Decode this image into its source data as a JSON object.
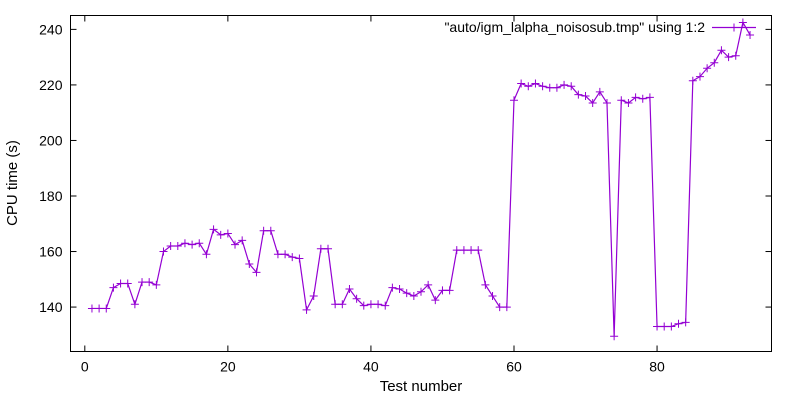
{
  "chart_data": {
    "type": "line",
    "xlabel": "Test number",
    "ylabel": "CPU time (s)",
    "xlim": [
      -2,
      96
    ],
    "ylim": [
      124,
      245
    ],
    "xticks": [
      0,
      20,
      40,
      60,
      80
    ],
    "yticks": [
      140,
      160,
      180,
      200,
      220,
      240
    ],
    "xtick_labels": [
      "0",
      "20",
      "40",
      "60",
      "80"
    ],
    "ytick_labels": [
      "140",
      "160",
      "180",
      "200",
      "220",
      "240"
    ],
    "grid": false,
    "legend_position": "top-right",
    "series": [
      {
        "name": "\"auto/igm_lalpha_noisosub.tmp\" using 1:2",
        "color": "#9400d3",
        "marker": "plus",
        "x": [
          1,
          2,
          3,
          4,
          5,
          6,
          7,
          8,
          9,
          10,
          11,
          12,
          13,
          14,
          15,
          16,
          17,
          18,
          19,
          20,
          21,
          22,
          23,
          24,
          25,
          26,
          27,
          28,
          29,
          30,
          31,
          32,
          33,
          34,
          35,
          36,
          37,
          38,
          39,
          40,
          41,
          42,
          43,
          44,
          45,
          46,
          47,
          48,
          49,
          50,
          51,
          52,
          53,
          54,
          55,
          56,
          57,
          58,
          59,
          60,
          61,
          62,
          63,
          64,
          65,
          66,
          67,
          68,
          69,
          70,
          71,
          72,
          73,
          74,
          75,
          76,
          77,
          78,
          79,
          80,
          81,
          82,
          83,
          84,
          85,
          86,
          87,
          88,
          89,
          90,
          91,
          92,
          93
        ],
        "y": [
          139.5,
          139.5,
          139.5,
          147,
          148.5,
          148.5,
          141,
          149,
          149,
          148,
          160,
          162,
          162,
          163,
          162.5,
          163,
          159,
          168,
          166,
          166.5,
          162.5,
          164,
          155.5,
          152.5,
          167.5,
          167.5,
          159,
          159,
          158,
          157.5,
          139,
          144,
          161,
          161,
          141,
          141,
          146.5,
          143,
          140.5,
          141,
          141,
          140.5,
          147,
          146.5,
          145,
          144,
          145.5,
          148,
          142.5,
          146,
          146,
          160.5,
          160.5,
          160.5,
          160.5,
          148,
          144,
          140,
          140,
          214.5,
          220.5,
          219.5,
          220.5,
          219.5,
          219,
          219,
          220,
          219.5,
          216.5,
          216,
          213.5,
          217.5,
          213.5,
          129.5,
          214.5,
          213.5,
          215.5,
          215,
          215.5,
          133,
          133,
          133,
          134,
          134.5,
          221.5,
          223,
          226,
          228,
          232.5,
          230,
          230.5,
          242.5,
          238
        ]
      }
    ]
  }
}
